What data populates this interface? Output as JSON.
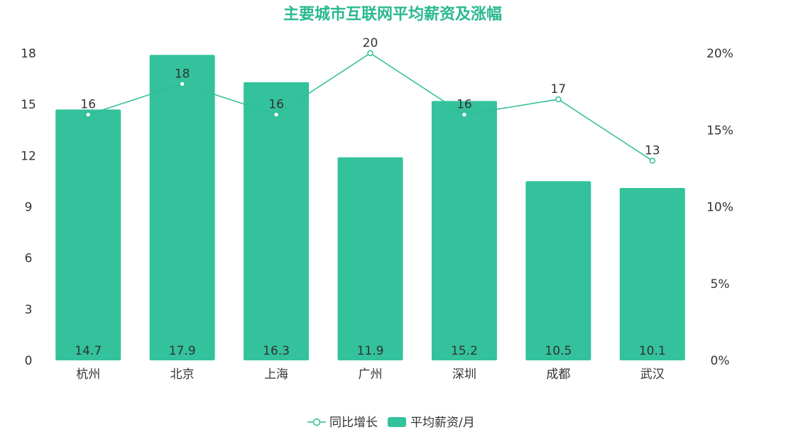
{
  "chart_data": {
    "type": "bar",
    "title": "主要城市互联网平均薪资及涨幅",
    "categories": [
      "杭州",
      "北京",
      "上海",
      "广州",
      "深圳",
      "成都",
      "武汉"
    ],
    "series": [
      {
        "name": "平均薪资/月",
        "type": "bar",
        "axis": "left",
        "values": [
          14.7,
          17.9,
          16.3,
          11.9,
          15.2,
          10.5,
          10.1
        ],
        "labels": [
          "14.7",
          "17.9",
          "16.3",
          "11.9",
          "15.2",
          "10.5",
          "10.1"
        ]
      },
      {
        "name": "同比增长",
        "type": "line",
        "axis": "right",
        "values": [
          16,
          18,
          16,
          20,
          16,
          17,
          13
        ],
        "labels": [
          "16",
          "18",
          "16",
          "20",
          "16",
          "17",
          "13"
        ]
      }
    ],
    "y_left": {
      "ticks": [
        "0",
        "3",
        "6",
        "9",
        "12",
        "15",
        "18"
      ],
      "range": [
        0,
        18
      ]
    },
    "y_right": {
      "ticks": [
        "0%",
        "5%",
        "10%",
        "15%",
        "20%"
      ],
      "range": [
        0,
        20
      ]
    },
    "legend": {
      "position": "bottom-center",
      "items": [
        "同比增长",
        "平均薪资/月"
      ]
    },
    "grid": false,
    "colors": {
      "bar": "#33c29c",
      "line": "#2dbe97",
      "title": "#2ab890",
      "text": "#333333"
    }
  }
}
